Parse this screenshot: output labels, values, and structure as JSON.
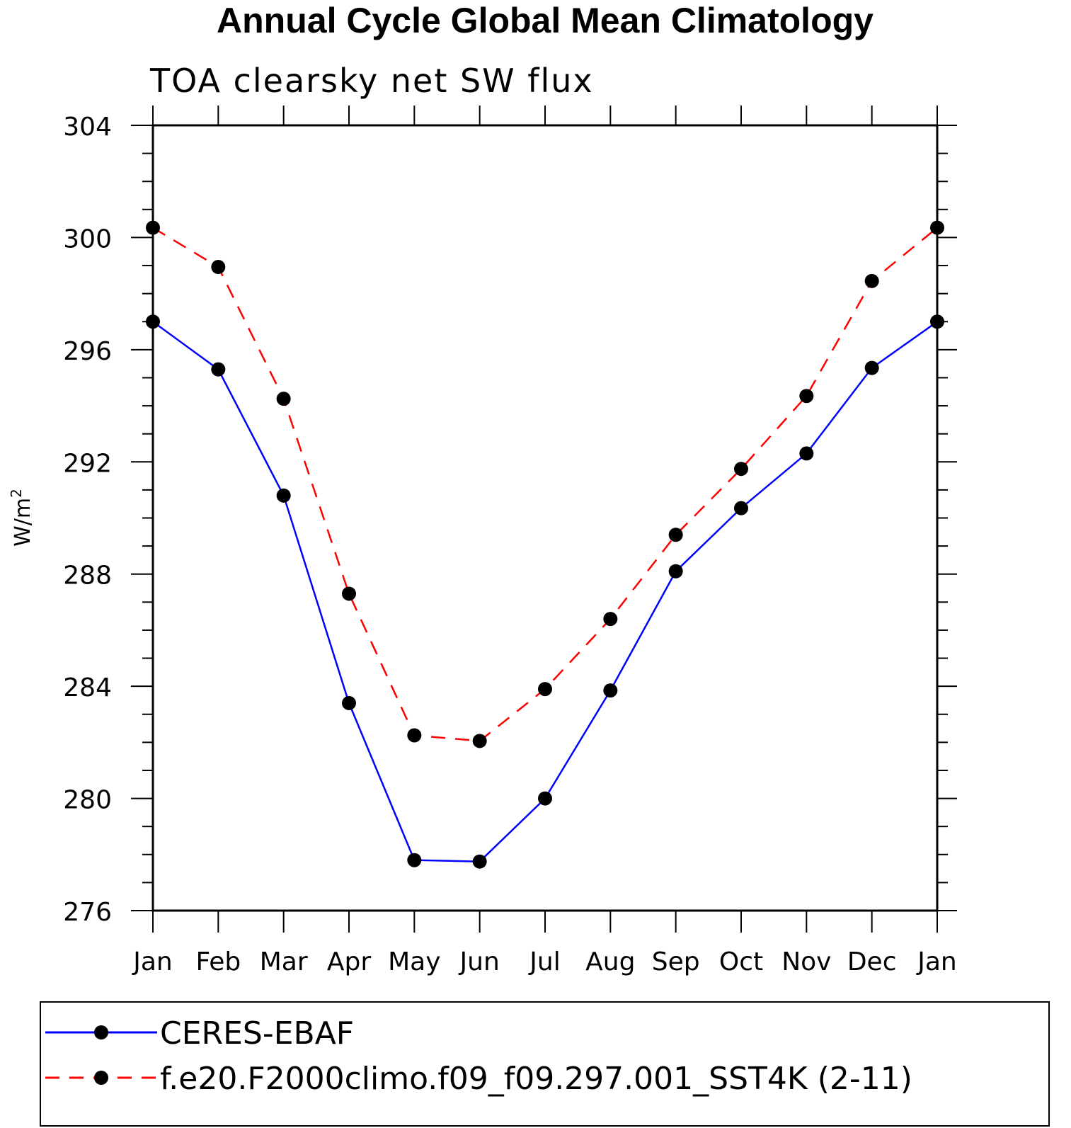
{
  "chart_data": {
    "type": "line",
    "title": "Annual Cycle Global Mean Climatology",
    "subtitle": "TOA clearsky net SW flux",
    "ylabel": "W/m",
    "ylabel_superscript": "2",
    "xlabel": "",
    "categories": [
      "Jan",
      "Feb",
      "Mar",
      "Apr",
      "May",
      "Jun",
      "Jul",
      "Aug",
      "Sep",
      "Oct",
      "Nov",
      "Dec",
      "Jan"
    ],
    "ylim": [
      276,
      304
    ],
    "yticks": [
      276,
      280,
      284,
      288,
      292,
      296,
      300,
      304
    ],
    "yticks_labels": [
      "276",
      "280",
      "284",
      "288",
      "292",
      "296",
      "300",
      "304"
    ],
    "series": [
      {
        "name": "CERES-EBAF",
        "color": "#0000ff",
        "dash": "solid",
        "values": [
          297.0,
          295.3,
          290.8,
          283.4,
          277.8,
          277.75,
          280.0,
          283.85,
          288.1,
          290.35,
          292.3,
          295.35,
          297.0
        ]
      },
      {
        "name": "f.e20.F2000climo.f09_f09.297.001_SST4K (2-11)",
        "color": "#ff0000",
        "dash": "dashed",
        "values": [
          300.35,
          298.95,
          294.25,
          287.3,
          282.25,
          282.05,
          283.9,
          286.4,
          289.4,
          291.75,
          294.35,
          298.45,
          300.35
        ]
      }
    ],
    "legend_position": "bottom"
  }
}
